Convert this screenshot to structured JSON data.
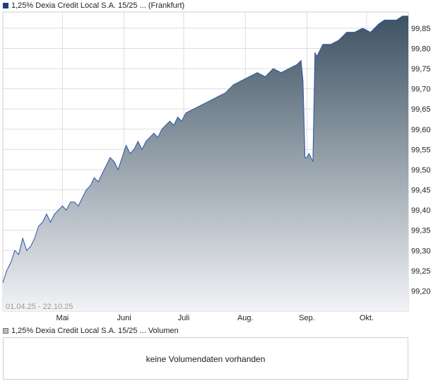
{
  "legend": {
    "price": "1,25% Dexia Credit Local S.A. 15/25 ... (Frankfurt)",
    "volume": "1,25% Dexia Credit Local S.A. 15/25 ... Volumen"
  },
  "volume_panel": {
    "message": "keine Volumendaten vorhanden"
  },
  "colors": {
    "line": "#2b55a8",
    "fill_top": "#3d5262",
    "fill_bottom": "#f2f3f6",
    "grid": "#dddddd"
  },
  "chart_data": {
    "type": "area",
    "title": "",
    "date_range": "01.04.25 - 22.10.25",
    "xlabel": "",
    "ylabel": "",
    "ylim": [
      99.15,
      99.89
    ],
    "xlim": [
      "2025-04-01",
      "2025-10-22"
    ],
    "grid": true,
    "y_ticks": [
      99.2,
      99.25,
      99.3,
      99.35,
      99.4,
      99.45,
      99.5,
      99.55,
      99.6,
      99.65,
      99.7,
      99.75,
      99.8,
      99.85
    ],
    "y_tick_labels": [
      "99,20",
      "99,25",
      "99,30",
      "99,35",
      "99,40",
      "99,45",
      "99,50",
      "99,55",
      "99,60",
      "99,65",
      "99,70",
      "99,75",
      "99,80",
      "99,85"
    ],
    "x_ticks": [
      "2025-05-01",
      "2025-06-01",
      "2025-07-01",
      "2025-08-01",
      "2025-09-01",
      "2025-10-01"
    ],
    "x_tick_labels": [
      "Mai",
      "Juni",
      "Juli",
      "Aug.",
      "Sep.",
      "Okt."
    ],
    "series": [
      {
        "x": [
          "2025-04-01",
          "2025-04-03",
          "2025-04-05",
          "2025-04-07",
          "2025-04-09",
          "2025-04-11",
          "2025-04-13",
          "2025-04-15",
          "2025-04-17",
          "2025-04-19",
          "2025-04-21",
          "2025-04-23",
          "2025-04-25",
          "2025-04-27",
          "2025-04-29",
          "2025-05-01",
          "2025-05-03",
          "2025-05-05",
          "2025-05-07",
          "2025-05-09",
          "2025-05-11",
          "2025-05-13",
          "2025-05-15",
          "2025-05-17",
          "2025-05-19",
          "2025-05-21",
          "2025-05-23",
          "2025-05-25",
          "2025-05-27",
          "2025-05-29",
          "2025-05-31",
          "2025-06-02",
          "2025-06-04",
          "2025-06-06",
          "2025-06-08",
          "2025-06-10",
          "2025-06-12",
          "2025-06-14",
          "2025-06-16",
          "2025-06-18",
          "2025-06-20",
          "2025-06-22",
          "2025-06-24",
          "2025-06-26",
          "2025-06-28",
          "2025-06-30",
          "2025-07-02",
          "2025-07-06",
          "2025-07-10",
          "2025-07-14",
          "2025-07-18",
          "2025-07-22",
          "2025-07-26",
          "2025-07-30",
          "2025-08-03",
          "2025-08-07",
          "2025-08-11",
          "2025-08-15",
          "2025-08-19",
          "2025-08-23",
          "2025-08-27",
          "2025-08-29",
          "2025-08-30",
          "2025-08-31",
          "2025-09-01",
          "2025-09-02",
          "2025-09-03",
          "2025-09-04",
          "2025-09-05",
          "2025-09-06",
          "2025-09-09",
          "2025-09-13",
          "2025-09-17",
          "2025-09-21",
          "2025-09-25",
          "2025-09-29",
          "2025-10-03",
          "2025-10-07",
          "2025-10-10",
          "2025-10-13",
          "2025-10-16",
          "2025-10-19",
          "2025-10-22"
        ],
        "y": [
          99.22,
          99.25,
          99.27,
          99.3,
          99.29,
          99.33,
          99.3,
          99.31,
          99.33,
          99.36,
          99.37,
          99.39,
          99.37,
          99.39,
          99.4,
          99.41,
          99.4,
          99.42,
          99.42,
          99.41,
          99.43,
          99.45,
          99.46,
          99.48,
          99.47,
          99.49,
          99.51,
          99.53,
          99.52,
          99.5,
          99.53,
          99.56,
          99.54,
          99.55,
          99.57,
          99.55,
          99.57,
          99.58,
          99.59,
          99.58,
          99.6,
          99.61,
          99.62,
          99.61,
          99.63,
          99.62,
          99.64,
          99.65,
          99.66,
          99.67,
          99.68,
          99.69,
          99.71,
          99.72,
          99.73,
          99.74,
          99.73,
          99.75,
          99.74,
          99.75,
          99.76,
          99.77,
          99.72,
          99.53,
          99.53,
          99.54,
          99.53,
          99.52,
          99.79,
          99.78,
          99.81,
          99.81,
          99.82,
          99.84,
          99.84,
          99.85,
          99.84,
          99.86,
          99.87,
          99.87,
          99.87,
          99.88,
          99.88
        ]
      }
    ]
  }
}
